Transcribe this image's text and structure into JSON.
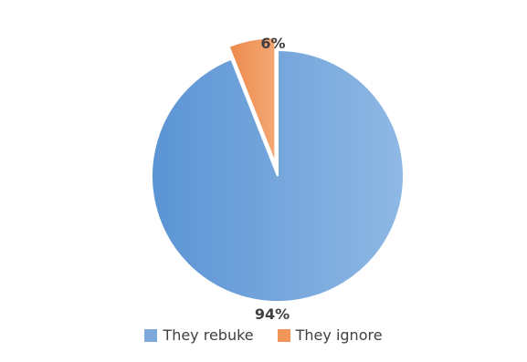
{
  "chart_data": {
    "type": "pie",
    "title": "",
    "categories": [
      "They rebuke",
      "They ignore"
    ],
    "values": [
      94,
      6
    ],
    "data_labels": [
      "94%",
      "6%"
    ],
    "colors": [
      "#7ea9dc",
      "#f0945a"
    ],
    "exploded": [
      false,
      true
    ],
    "legend_position": "bottom"
  },
  "legend": {
    "items": [
      {
        "label": "They rebuke",
        "color": "#7ea9dc"
      },
      {
        "label": "They ignore",
        "color": "#f0945a"
      }
    ]
  }
}
